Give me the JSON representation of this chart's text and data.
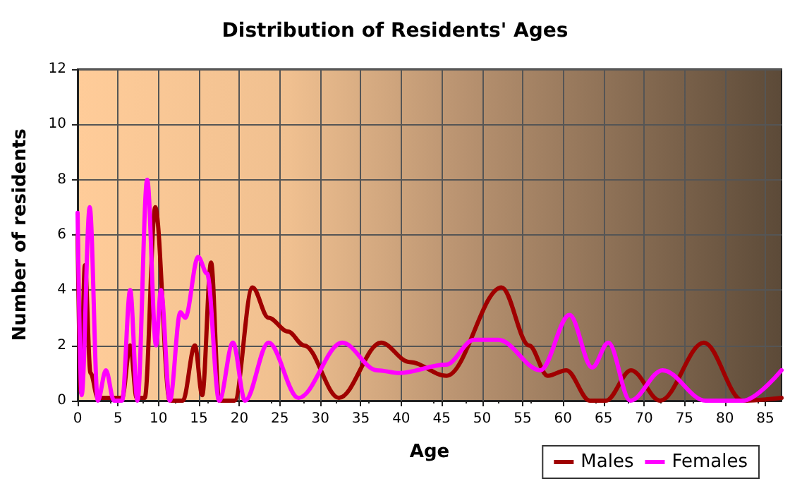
{
  "chart_data": {
    "type": "line",
    "title": "Distribution of Residents' Ages",
    "xlabel": "Age",
    "ylabel": "Number of residents",
    "xlim": [
      0,
      87
    ],
    "xticks": [
      0,
      5,
      10,
      15,
      20,
      25,
      30,
      35,
      40,
      45,
      50,
      55,
      60,
      65,
      70,
      75,
      80,
      85
    ],
    "ylim": [
      0,
      12
    ],
    "yticks": [
      0,
      2,
      4,
      6,
      8,
      10,
      12
    ],
    "grid": true,
    "legend": "bottom right",
    "marker": "none",
    "line_style": "solid",
    "series": [
      {
        "name": "Males",
        "color": "#a00000",
        "x": [
          0,
          0.4,
          0.9,
          1.6,
          2.5,
          4,
          5.5,
          6.5,
          7.3,
          8.3,
          9.6,
          11.4,
          13,
          14.5,
          15.4,
          16.5,
          17.5,
          19.4,
          21.6,
          23.6,
          26,
          28,
          32.3,
          37.5,
          41,
          45.6,
          52.4,
          55.8,
          58.1,
          60.4,
          63.3,
          65.3,
          68.4,
          72,
          77.4,
          82.2,
          87
        ],
        "values": [
          6,
          0.3,
          4.9,
          1,
          0.1,
          0.1,
          0.1,
          2,
          0.1,
          0.1,
          7,
          0,
          0,
          2,
          0.2,
          5,
          0,
          0,
          4.1,
          3,
          2.5,
          2,
          0.1,
          2.1,
          1.4,
          0.9,
          4.1,
          2,
          0.9,
          1.1,
          0,
          0,
          1.1,
          0,
          2.1,
          0,
          0.1
        ]
      },
      {
        "name": "Females",
        "color": "#ff00ff",
        "x": [
          0,
          0.5,
          1.5,
          2.5,
          3.5,
          4.5,
          5.5,
          6.5,
          7.4,
          8.6,
          9.7,
          10.3,
          11.4,
          12.7,
          13.3,
          14.9,
          16,
          17.5,
          19.2,
          20.7,
          23.6,
          27.3,
          32.7,
          37,
          39.8,
          45.5,
          49,
          52,
          57.2,
          60.8,
          63.6,
          65.6,
          68.3,
          72.3,
          77.6,
          82.2,
          87
        ],
        "values": [
          6.8,
          0.2,
          7,
          0,
          1.1,
          0,
          0,
          4,
          0,
          8,
          2,
          4,
          0,
          3.2,
          3,
          5.2,
          4.6,
          0,
          2.1,
          0,
          2.1,
          0.1,
          2.1,
          1.1,
          1,
          1.3,
          2.2,
          2.2,
          1.1,
          3.1,
          1.2,
          2.1,
          0,
          1.1,
          0,
          0,
          1.1
        ]
      }
    ]
  }
}
